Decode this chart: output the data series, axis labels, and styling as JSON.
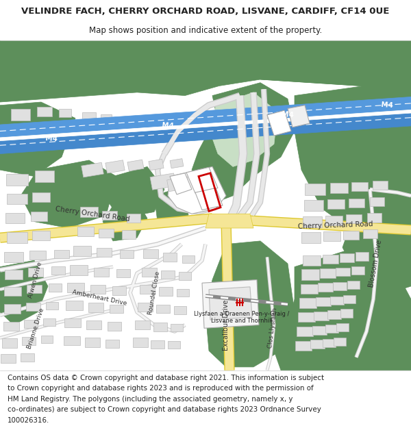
{
  "title_line1": "VELINDRE FACH, CHERRY ORCHARD ROAD, LISVANE, CARDIFF, CF14 0UE",
  "title_line2": "Map shows position and indicative extent of the property.",
  "footer_text": "Contains OS data © Crown copyright and database right 2021. This information is subject to Crown copyright and database rights 2023 and is reproduced with the permission of HM Land Registry. The polygons (including the associated geometry, namely x, y co-ordinates) are subject to Crown copyright and database rights 2023 Ordnance Survey 100026316.",
  "text_color": "#222222",
  "title_fontsize": 9,
  "subtitle_fontsize": 8.5,
  "footer_fontsize": 7.5,
  "green_dark": "#5d8f5b",
  "green_med": "#7aaa78",
  "green_light": "#c8dfc5",
  "motorway_blue": "#5599dd",
  "motorway_blue2": "#4488cc",
  "road_yellow": "#f5e696",
  "road_border": "#ddc830",
  "road_gray": "#e8e8e8",
  "road_gray_dark": "#cccccc",
  "building_fill": "#e0e0e0",
  "building_edge": "#bbbbbb",
  "plot_red": "#cc0000",
  "map_bg": "#f0eeea"
}
